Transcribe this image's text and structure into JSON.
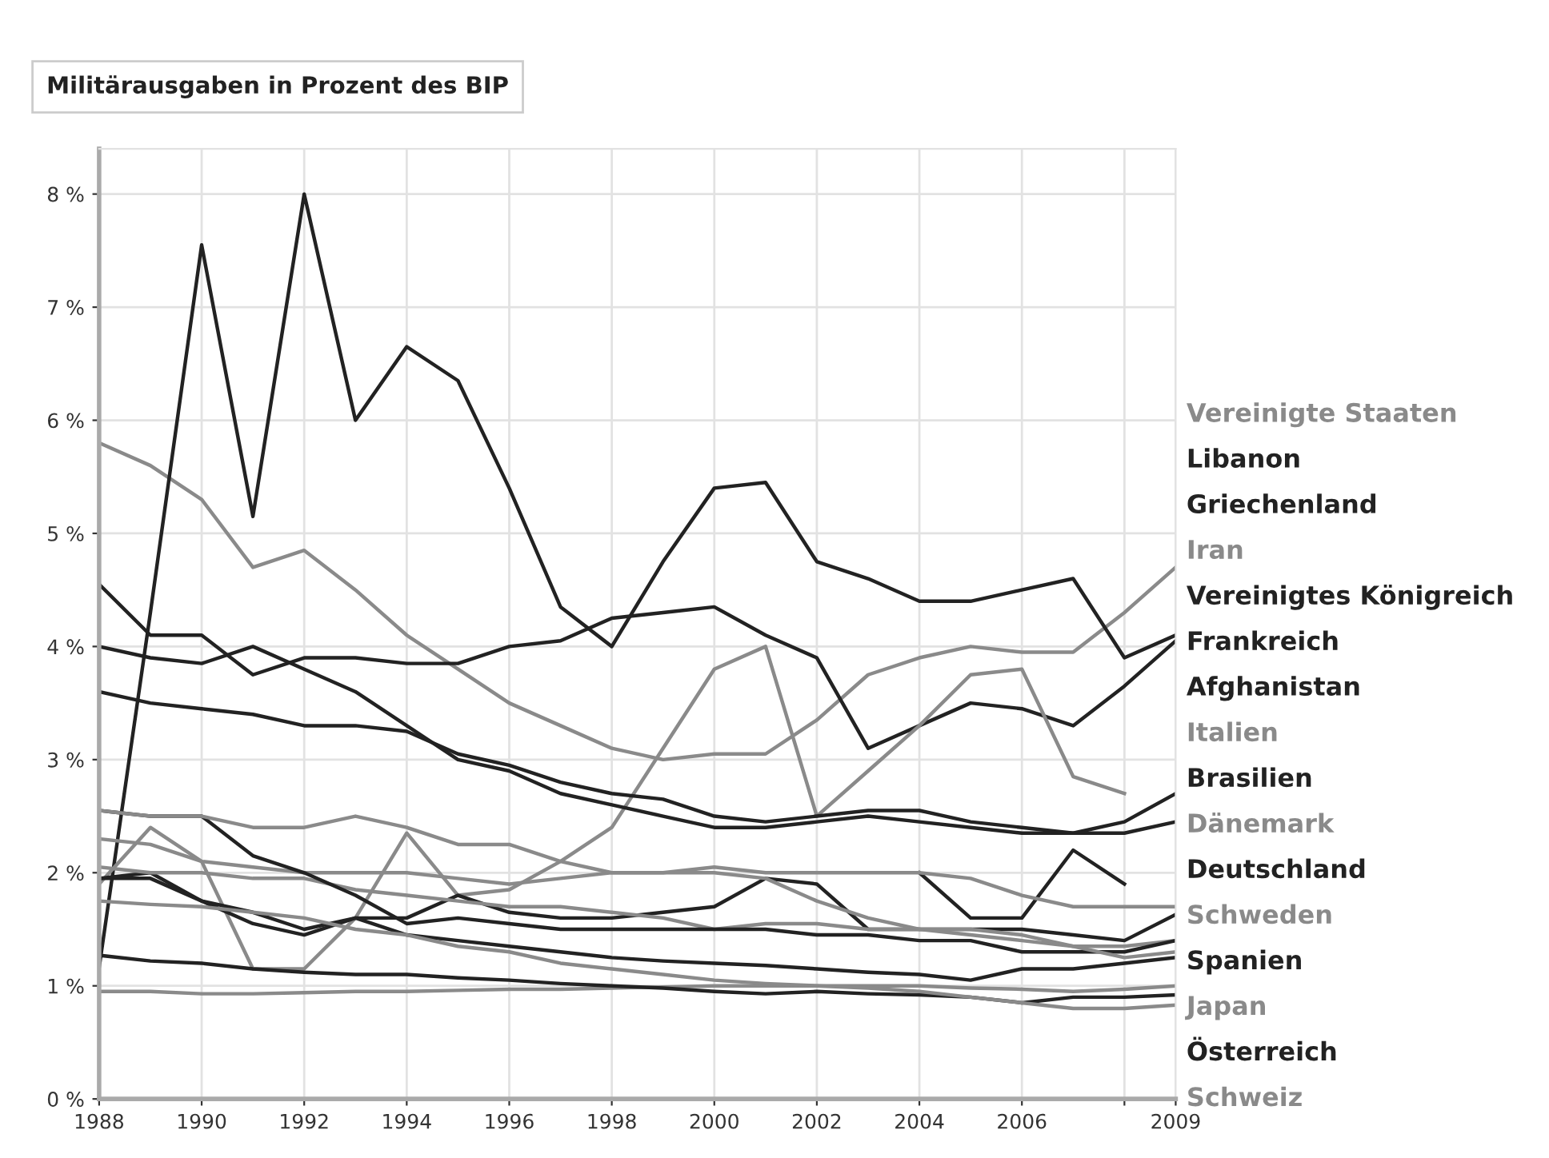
{
  "chart_data": {
    "type": "line",
    "title": "Militärausgaben in Prozent des BIP",
    "x": [
      1988,
      1989,
      1990,
      1991,
      1992,
      1993,
      1994,
      1995,
      1996,
      1997,
      1998,
      1999,
      2000,
      2001,
      2002,
      2003,
      2004,
      2005,
      2006,
      2007,
      2008,
      2009
    ],
    "xlim": [
      1988,
      2009
    ],
    "xticks": [
      1988,
      1990,
      1992,
      1994,
      1996,
      1998,
      2000,
      2002,
      2004,
      2006,
      {
        "value": 2008,
        "label": null
      },
      2009
    ],
    "ylim": [
      0,
      8.4
    ],
    "yticks": [
      {
        "value": 0,
        "label": "0 %"
      },
      {
        "value": 1,
        "label": "1 %"
      },
      {
        "value": 2,
        "label": "2 %"
      },
      {
        "value": 3,
        "label": "3 %"
      },
      {
        "value": 4,
        "label": "4 %"
      },
      {
        "value": 5,
        "label": "5 %"
      },
      {
        "value": 6,
        "label": "6 %"
      },
      {
        "value": 7,
        "label": "7 %"
      },
      {
        "value": 8,
        "label": "8 %"
      }
    ],
    "grid": true,
    "legend": "right",
    "marker": "none",
    "line_style": "solid",
    "series": [
      {
        "name": "Vereinigte Staaten",
        "color": "#8a8a8a",
        "values": [
          5.8,
          5.6,
          5.3,
          4.7,
          4.85,
          4.5,
          4.1,
          3.8,
          3.5,
          3.3,
          3.1,
          3.0,
          3.05,
          3.05,
          3.35,
          3.75,
          3.9,
          4.0,
          3.95,
          3.95,
          4.3,
          4.7
        ]
      },
      {
        "name": "Libanon",
        "color": "#222222",
        "values": [
          1.16,
          4.3,
          7.55,
          5.15,
          8.0,
          6.0,
          6.65,
          6.35,
          5.4,
          4.35,
          4.0,
          4.75,
          5.4,
          5.45,
          4.75,
          4.6,
          4.4,
          4.4,
          4.5,
          4.6,
          3.9,
          4.1
        ]
      },
      {
        "name": "Griechenland",
        "color": "#222222",
        "values": [
          4.55,
          4.1,
          4.1,
          3.75,
          3.9,
          3.9,
          3.85,
          3.85,
          4.0,
          4.05,
          4.25,
          4.3,
          4.35,
          4.1,
          3.9,
          3.1,
          3.3,
          3.5,
          3.45,
          3.3,
          3.65,
          4.05
        ]
      },
      {
        "name": "Iran",
        "color": "#8a8a8a",
        "values": [
          1.9,
          2.4,
          2.1,
          1.15,
          1.15,
          1.6,
          2.35,
          1.8,
          1.85,
          2.1,
          2.4,
          3.1,
          3.8,
          4.0,
          2.5,
          2.9,
          3.3,
          3.75,
          3.8,
          2.85,
          2.7,
          null
        ]
      },
      {
        "name": "Vereinigtes Königreich",
        "color": "#222222",
        "values": [
          4.0,
          3.9,
          3.85,
          4.0,
          3.8,
          3.6,
          3.3,
          3.0,
          2.9,
          2.7,
          2.6,
          2.5,
          2.4,
          2.4,
          2.45,
          2.5,
          2.45,
          2.4,
          2.35,
          2.35,
          2.45,
          2.7
        ]
      },
      {
        "name": "Frankreich",
        "color": "#222222",
        "values": [
          3.6,
          3.5,
          3.45,
          3.4,
          3.3,
          3.3,
          3.25,
          3.05,
          2.95,
          2.8,
          2.7,
          2.65,
          2.5,
          2.45,
          2.5,
          2.55,
          2.55,
          2.45,
          2.4,
          2.35,
          2.35,
          2.45
        ]
      },
      {
        "name": "Afghanistan",
        "color": "#222222",
        "values": [
          null,
          null,
          null,
          null,
          null,
          null,
          null,
          null,
          null,
          null,
          null,
          null,
          null,
          null,
          null,
          null,
          2.0,
          1.6,
          1.6,
          2.2,
          1.9,
          null
        ]
      },
      {
        "name": "Italien",
        "color": "#8a8a8a",
        "values": [
          2.3,
          2.25,
          2.1,
          2.05,
          2.0,
          2.0,
          2.0,
          1.95,
          1.9,
          1.95,
          2.0,
          2.0,
          2.05,
          2.0,
          2.0,
          2.0,
          2.0,
          1.95,
          1.8,
          1.7,
          1.7,
          1.7
        ]
      },
      {
        "name": "Brasilien",
        "color": "#222222",
        "values": [
          1.95,
          2.0,
          1.75,
          1.55,
          1.45,
          1.6,
          1.6,
          1.8,
          1.65,
          1.6,
          1.6,
          1.65,
          1.7,
          1.95,
          1.9,
          1.5,
          1.5,
          1.5,
          1.5,
          1.45,
          1.4,
          1.63
        ]
      },
      {
        "name": "Dänemark",
        "color": "#8a8a8a",
        "values": [
          2.05,
          2.0,
          2.0,
          1.95,
          1.95,
          1.85,
          1.8,
          1.75,
          1.7,
          1.7,
          1.65,
          1.6,
          1.5,
          1.55,
          1.55,
          1.5,
          1.5,
          1.45,
          1.4,
          1.35,
          1.35,
          1.4
        ]
      },
      {
        "name": "Deutschland",
        "color": "#222222",
        "values": [
          2.55,
          2.5,
          2.5,
          2.15,
          2.0,
          1.8,
          1.55,
          1.6,
          1.55,
          1.5,
          1.5,
          1.5,
          1.5,
          1.5,
          1.45,
          1.45,
          1.4,
          1.4,
          1.3,
          1.3,
          1.3,
          1.4
        ]
      },
      {
        "name": "Schweden",
        "color": "#8a8a8a",
        "values": [
          2.55,
          2.5,
          2.5,
          2.4,
          2.4,
          2.5,
          2.4,
          2.25,
          2.25,
          2.1,
          2.0,
          2.0,
          2.0,
          1.95,
          1.75,
          1.6,
          1.5,
          1.5,
          1.45,
          1.35,
          1.25,
          1.3
        ]
      },
      {
        "name": "Spanien",
        "color": "#222222",
        "values": [
          1.95,
          1.95,
          1.75,
          1.65,
          1.5,
          1.6,
          1.45,
          1.4,
          1.35,
          1.3,
          1.25,
          1.22,
          1.2,
          1.18,
          1.15,
          1.12,
          1.1,
          1.05,
          1.15,
          1.15,
          1.2,
          1.25
        ]
      },
      {
        "name": "Japan",
        "color": "#8a8a8a",
        "values": [
          0.95,
          0.95,
          0.93,
          0.93,
          0.94,
          0.95,
          0.95,
          0.96,
          0.97,
          0.97,
          0.98,
          0.99,
          1.0,
          1.0,
          1.0,
          1.0,
          1.0,
          0.98,
          0.97,
          0.95,
          0.97,
          1.0
        ]
      },
      {
        "name": "Österreich",
        "color": "#222222",
        "values": [
          1.27,
          1.22,
          1.2,
          1.15,
          1.12,
          1.1,
          1.1,
          1.07,
          1.05,
          1.02,
          1.0,
          0.98,
          0.95,
          0.93,
          0.95,
          0.93,
          0.92,
          0.9,
          0.85,
          0.9,
          0.9,
          0.92
        ]
      },
      {
        "name": "Schweiz",
        "color": "#8a8a8a",
        "values": [
          1.75,
          1.72,
          1.7,
          1.65,
          1.6,
          1.5,
          1.45,
          1.35,
          1.3,
          1.2,
          1.15,
          1.1,
          1.05,
          1.02,
          1.0,
          0.98,
          0.95,
          0.9,
          0.85,
          0.8,
          0.8,
          0.83
        ]
      }
    ]
  }
}
